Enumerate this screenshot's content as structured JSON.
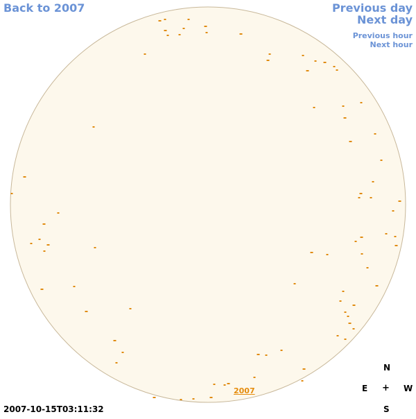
{
  "nav": {
    "back": "Back to 2007",
    "previous_day": "Previous day",
    "next_day": "Next day",
    "previous_hour": "Previous hour",
    "next_hour": "Next hour"
  },
  "compass": {
    "north": "N",
    "east": "E",
    "center": "+",
    "west": "W",
    "south": "S"
  },
  "timestamp": "2007-10-15T03:11:32",
  "year_link": "2007",
  "colors": {
    "disk_fill": "#fdf8ec",
    "disk_border": "#c8b89a",
    "spot": "#e08a0e",
    "link": "#6b93d6"
  }
}
